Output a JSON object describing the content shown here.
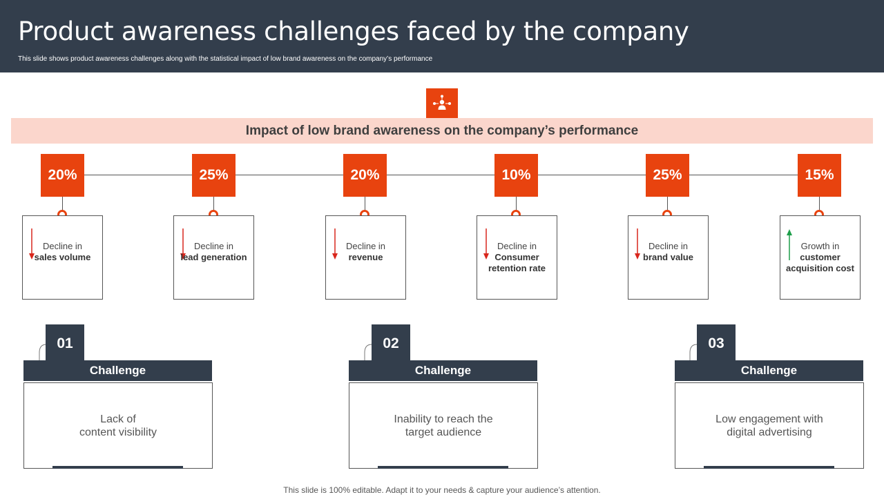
{
  "header": {
    "title": "Product awareness challenges faced by the company",
    "subtitle": "This slide shows product awareness challenges along with the statistical impact of low brand awareness on the company’s performance"
  },
  "banner": {
    "title": "Impact of low brand awareness on the company’s performance",
    "icon": "people-network-icon"
  },
  "stats": [
    {
      "value": "20%",
      "pre": "Decline in",
      "bold": "sales volume",
      "direction": "down"
    },
    {
      "value": "25%",
      "pre": "Decline in",
      "bold": "lead generation",
      "direction": "down"
    },
    {
      "value": "20%",
      "pre": "Decline in",
      "bold": "revenue",
      "direction": "down"
    },
    {
      "value": "10%",
      "pre": "Decline in",
      "bold": "Consumer retention rate",
      "direction": "down"
    },
    {
      "value": "25%",
      "pre": "Decline in",
      "bold": "brand value",
      "direction": "down"
    },
    {
      "value": "15%",
      "pre": "Growth in",
      "bold": "customer acquisition cost",
      "direction": "up"
    }
  ],
  "challenges": [
    {
      "number": "01",
      "label": "Challenge",
      "line1": "Lack of",
      "line2": "content visibility"
    },
    {
      "number": "02",
      "label": "Challenge",
      "line1": "Inability to reach the",
      "line2": "target audience"
    },
    {
      "number": "03",
      "label": "Challenge",
      "line1": "Low engagement with",
      "line2": "digital advertising"
    }
  ],
  "colors": {
    "accent": "#e8430f",
    "dark": "#333e4c",
    "banner": "#fbd6cc",
    "down": "#d9261c",
    "up": "#1e9e4a"
  },
  "footer": "This slide is 100% editable. Adapt it to your needs & capture your audience’s attention."
}
